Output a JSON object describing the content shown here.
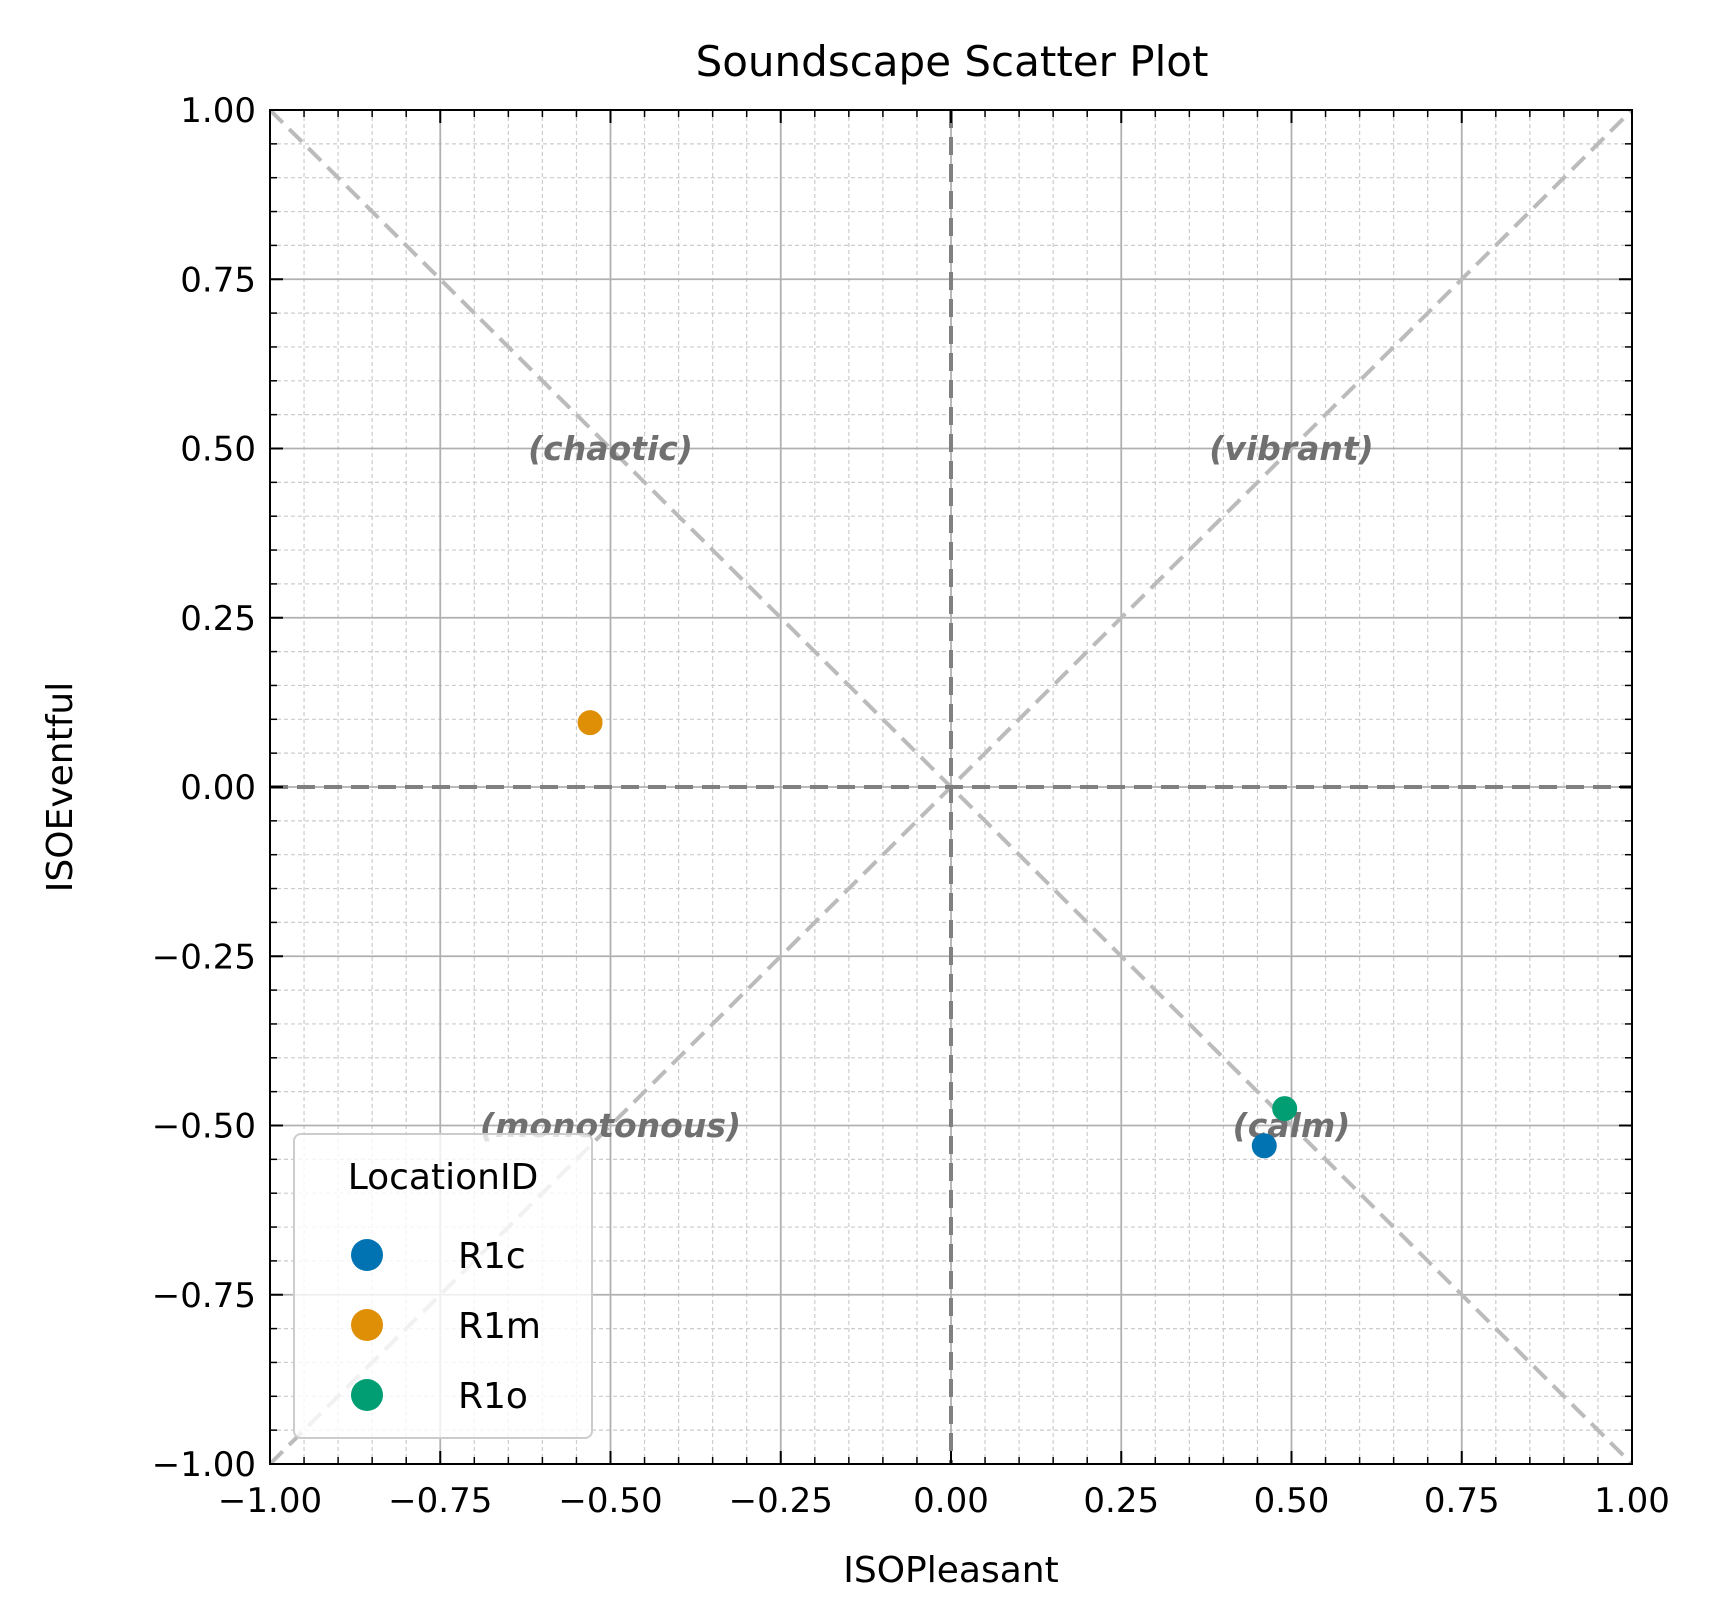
{
  "chart_data": {
    "type": "scatter",
    "title": "Soundscape Scatter Plot",
    "xlabel": "ISOPleasant",
    "ylabel": "ISOEventful",
    "xlim": [
      -1.0,
      1.0
    ],
    "ylim": [
      -1.0,
      1.0
    ],
    "xticks": [
      "−1.00",
      "−0.75",
      "−0.50",
      "−0.25",
      "0.00",
      "0.25",
      "0.50",
      "0.75",
      "1.00"
    ],
    "yticks": [
      "−1.00",
      "−0.75",
      "−0.50",
      "−0.25",
      "0.00",
      "0.25",
      "0.50",
      "0.75",
      "1.00"
    ],
    "grid": true,
    "legend": {
      "title": "LocationID",
      "placement": "lower-left"
    },
    "series": [
      {
        "name": "R1c",
        "color": "#0173b2",
        "points": [
          {
            "x": 0.46,
            "y": -0.53
          }
        ]
      },
      {
        "name": "R1m",
        "color": "#de8f05",
        "points": [
          {
            "x": -0.53,
            "y": 0.095
          }
        ]
      },
      {
        "name": "R1o",
        "color": "#029e73",
        "points": [
          {
            "x": 0.49,
            "y": -0.475
          }
        ]
      }
    ],
    "annotations": [
      {
        "text": "(chaotic)",
        "x": -0.5,
        "y": 0.5
      },
      {
        "text": "(vibrant)",
        "x": 0.5,
        "y": 0.5
      },
      {
        "text": "(monotonous)",
        "x": -0.5,
        "y": -0.5
      },
      {
        "text": "(calm)",
        "x": 0.5,
        "y": -0.5
      }
    ]
  }
}
